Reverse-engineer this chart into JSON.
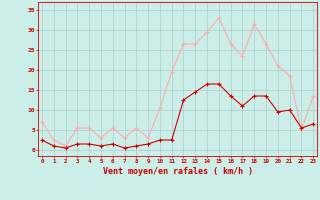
{
  "hours": [
    0,
    1,
    2,
    3,
    4,
    5,
    6,
    7,
    8,
    9,
    10,
    11,
    12,
    13,
    14,
    15,
    16,
    17,
    18,
    19,
    20,
    21,
    22,
    23
  ],
  "vent_moyen": [
    2.5,
    1.0,
    0.5,
    1.5,
    1.5,
    1.0,
    1.5,
    0.5,
    1.0,
    1.5,
    2.5,
    2.5,
    12.5,
    14.5,
    16.5,
    16.5,
    13.5,
    11.0,
    13.5,
    13.5,
    9.5,
    10.0,
    5.5,
    6.5
  ],
  "rafales": [
    7.0,
    2.5,
    1.0,
    5.5,
    5.5,
    3.0,
    5.5,
    3.0,
    5.5,
    3.0,
    10.5,
    19.5,
    26.5,
    26.5,
    29.5,
    33.0,
    26.5,
    23.5,
    31.5,
    26.5,
    21.0,
    18.5,
    5.0,
    13.5
  ],
  "color_moyen": "#cc0000",
  "color_rafales": "#ffaaaa",
  "background_color": "#cceee8",
  "grid_color": "#aacccc",
  "xlabel": "Vent moyen/en rafales ( km/h )",
  "xlabel_color": "#cc0000",
  "yticks": [
    0,
    5,
    10,
    15,
    20,
    25,
    30,
    35
  ],
  "ylim": [
    -1.5,
    37
  ],
  "xlim": [
    -0.3,
    23.3
  ],
  "tick_color": "#cc0000",
  "axis_color": "#cc0000"
}
